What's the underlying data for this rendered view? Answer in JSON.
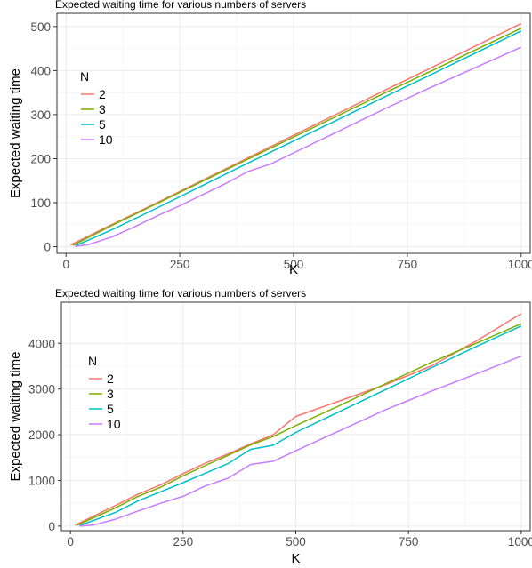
{
  "chart_data": [
    {
      "type": "line",
      "title": "Expected waiting time for various numbers of servers",
      "xlabel": "K",
      "ylabel": "Expected waiting time",
      "xlim": [
        -20,
        1020
      ],
      "ylim": [
        -15,
        530
      ],
      "xticks": [
        0,
        250,
        500,
        750,
        1000
      ],
      "xtick_labels": [
        "0",
        "250",
        "500",
        "750",
        "1000"
      ],
      "yticks": [
        0,
        100,
        200,
        300,
        400,
        500
      ],
      "ytick_labels": [
        "0",
        "100",
        "200",
        "300",
        "400",
        "500"
      ],
      "grid": true,
      "legend_position": "top-left",
      "legend_title": "N",
      "series": [
        {
          "name": "2",
          "color": "#F8766D",
          "x": [
            10,
            100,
            200,
            300,
            400,
            500,
            600,
            700,
            800,
            900,
            1000
          ],
          "y": [
            4,
            50,
            100,
            151,
            202,
            253,
            304,
            355,
            405,
            456,
            507
          ]
        },
        {
          "name": "3",
          "color": "#7CAE00",
          "x": [
            15,
            100,
            200,
            300,
            400,
            500,
            600,
            700,
            800,
            900,
            1000
          ],
          "y": [
            3,
            48,
            98,
            149,
            199,
            249,
            299,
            349,
            398,
            447,
            496
          ]
        },
        {
          "name": "5",
          "color": "#00BFC4",
          "x": [
            20,
            100,
            200,
            300,
            400,
            500,
            600,
            700,
            800,
            900,
            1000
          ],
          "y": [
            2,
            38,
            88,
            139,
            190,
            240,
            290,
            340,
            390,
            440,
            490
          ]
        },
        {
          "name": "10",
          "color": "#C77CFF",
          "x": [
            20,
            50,
            100,
            150,
            200,
            250,
            300,
            350,
            400,
            450,
            500,
            600,
            700,
            800,
            900,
            1000
          ],
          "y": [
            1,
            5,
            22,
            45,
            70,
            93,
            118,
            143,
            171,
            188,
            213,
            263,
            313,
            361,
            407,
            453
          ]
        }
      ]
    },
    {
      "type": "line",
      "title": "Expected waiting time for various numbers of servers",
      "xlabel": "K",
      "ylabel": "Expected waiting time",
      "xlim": [
        -20,
        1020
      ],
      "ylim": [
        -100,
        4900
      ],
      "xticks": [
        0,
        250,
        500,
        750,
        1000
      ],
      "xtick_labels": [
        "0",
        "250",
        "500",
        "750",
        "1000"
      ],
      "yticks": [
        0,
        1000,
        2000,
        3000,
        4000
      ],
      "ytick_labels": [
        "0",
        "1000",
        "2000",
        "3000",
        "4000"
      ],
      "grid": true,
      "legend_position": "top-left",
      "legend_title": "N",
      "series": [
        {
          "name": "2",
          "color": "#F8766D",
          "x": [
            10,
            100,
            150,
            200,
            250,
            300,
            350,
            400,
            450,
            500,
            600,
            700,
            800,
            900,
            1000
          ],
          "y": [
            20,
            450,
            700,
            900,
            1150,
            1380,
            1580,
            1800,
            2000,
            2400,
            2750,
            3100,
            3500,
            4050,
            4650
          ]
        },
        {
          "name": "3",
          "color": "#7CAE00",
          "x": [
            15,
            100,
            150,
            200,
            250,
            300,
            350,
            400,
            450,
            500,
            600,
            700,
            800,
            900,
            1000
          ],
          "y": [
            20,
            400,
            650,
            850,
            1100,
            1330,
            1550,
            1780,
            1960,
            2200,
            2650,
            3120,
            3580,
            4000,
            4430
          ]
        },
        {
          "name": "5",
          "color": "#00BFC4",
          "x": [
            20,
            100,
            150,
            200,
            250,
            300,
            350,
            400,
            450,
            500,
            600,
            700,
            800,
            900,
            1000
          ],
          "y": [
            10,
            300,
            550,
            750,
            950,
            1160,
            1370,
            1680,
            1770,
            2050,
            2520,
            2990,
            3460,
            3930,
            4380
          ]
        },
        {
          "name": "10",
          "color": "#C77CFF",
          "x": [
            20,
            50,
            100,
            150,
            200,
            250,
            300,
            350,
            400,
            450,
            500,
            600,
            700,
            750,
            800,
            900,
            1000
          ],
          "y": [
            0,
            20,
            150,
            330,
            500,
            650,
            880,
            1050,
            1350,
            1420,
            1650,
            2100,
            2550,
            2750,
            2950,
            3330,
            3720
          ]
        }
      ]
    }
  ]
}
